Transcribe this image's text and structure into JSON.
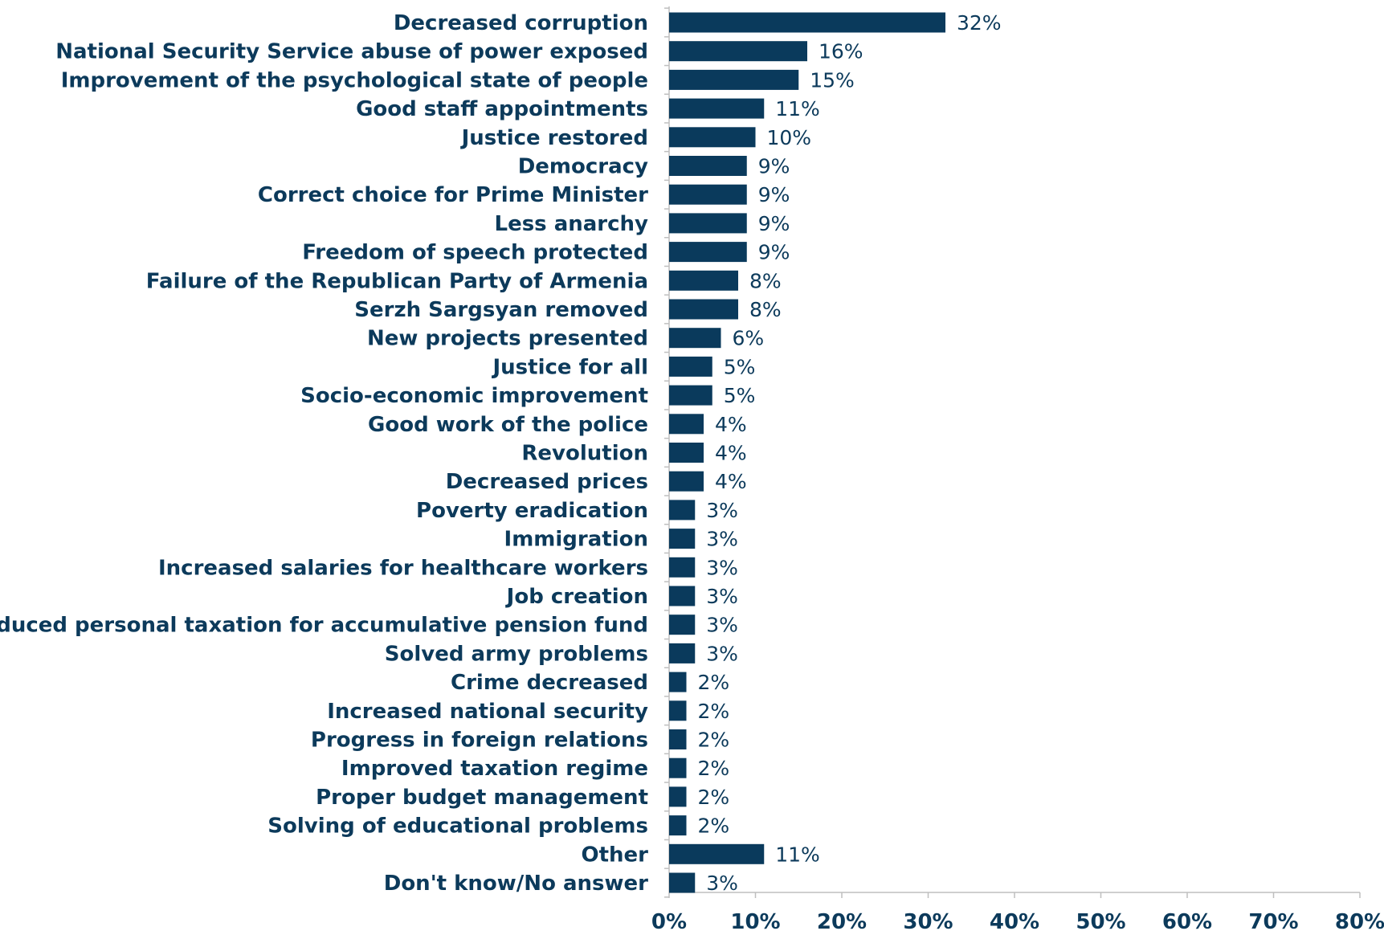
{
  "chart_data": {
    "type": "bar",
    "orientation": "horizontal",
    "categories": [
      "Decreased corruption",
      "National Security Service abuse of power exposed",
      "Improvement of the psychological state of people",
      "Good staff appointments",
      "Justice restored",
      "Democracy",
      "Correct choice for Prime Minister",
      "Less anarchy",
      "Freedom of speech protected",
      "Failure of the Republican Party of Armenia",
      "Serzh Sargsyan removed",
      "New projects presented",
      "Justice for all",
      "Socio-economic improvement",
      "Good work of the police",
      "Revolution",
      "Decreased prices",
      "Poverty eradication",
      "Immigration",
      "Increased salaries for healthcare workers",
      "Job creation",
      "Reduced personal taxation for accumulative pension fund",
      "Solved army problems",
      "Crime decreased",
      "Increased national security",
      "Progress in foreign relations",
      "Improved taxation regime",
      "Proper budget management",
      "Solving of educational problems",
      "Other",
      "Don't know/No answer"
    ],
    "values": [
      32,
      16,
      15,
      11,
      10,
      9,
      9,
      9,
      9,
      8,
      8,
      6,
      5,
      5,
      4,
      4,
      4,
      3,
      3,
      3,
      3,
      3,
      3,
      2,
      2,
      2,
      2,
      2,
      2,
      11,
      3
    ],
    "value_labels": [
      "32%",
      "16%",
      "15%",
      "11%",
      "10%",
      "9%",
      "9%",
      "9%",
      "9%",
      "8%",
      "8%",
      "6%",
      "5%",
      "5%",
      "4%",
      "4%",
      "4%",
      "3%",
      "3%",
      "3%",
      "3%",
      "3%",
      "3%",
      "2%",
      "2%",
      "2%",
      "2%",
      "2%",
      "2%",
      "11%",
      "3%"
    ],
    "xticks": [
      "0%",
      "10%",
      "20%",
      "30%",
      "40%",
      "50%",
      "60%",
      "70%",
      "80%"
    ],
    "xlim": [
      0,
      80
    ],
    "title": "",
    "xlabel": "",
    "ylabel": "",
    "grid": false,
    "bar_color": "#0a3a5c",
    "text_color": "#0c3a5b"
  }
}
